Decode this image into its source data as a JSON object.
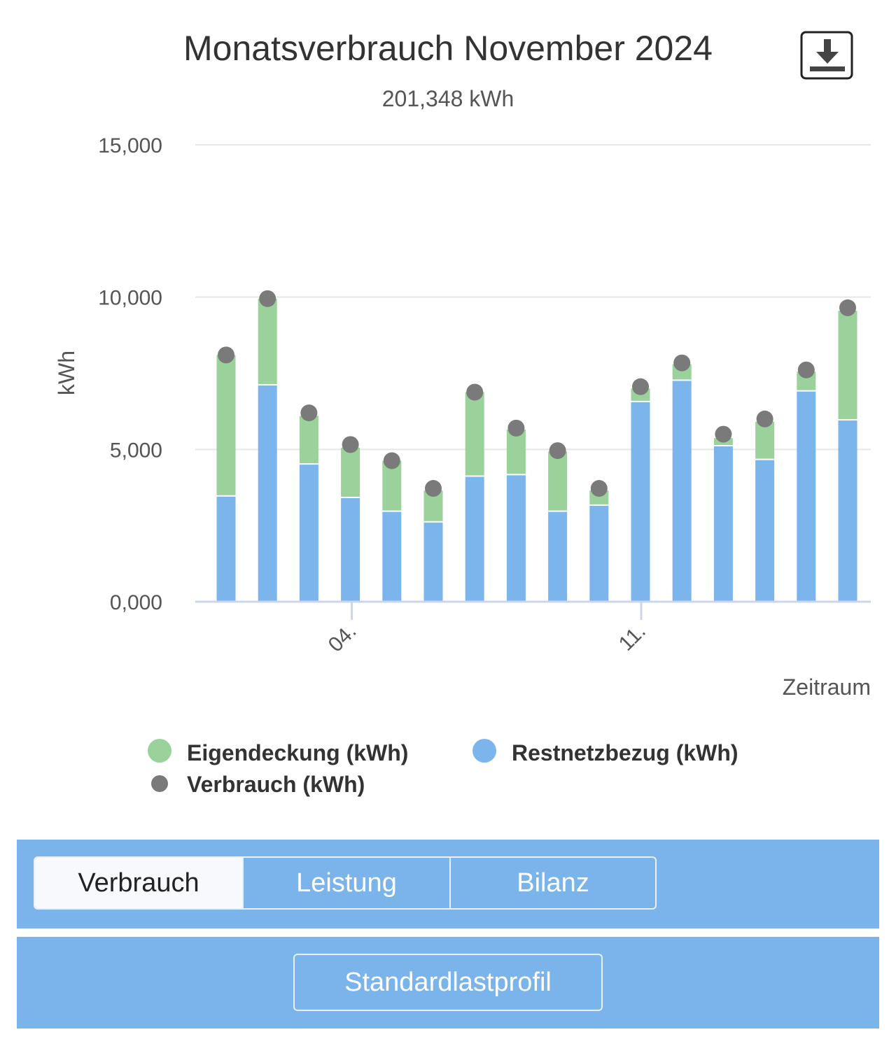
{
  "header": {
    "title": "Monatsverbrauch November 2024",
    "subtitle": "201,348 kWh",
    "download_icon": "download-icon"
  },
  "chart_data": {
    "type": "bar",
    "stacked": true,
    "title": "Monatsverbrauch November 2024",
    "subtitle": "201,348 kWh",
    "xlabel": "Zeitraum",
    "ylabel": "kWh",
    "ylim": [
      0,
      15000
    ],
    "yticks": [
      "0,000",
      "5,000",
      "10,000",
      "15,000"
    ],
    "ytick_values": [
      0,
      5000,
      10000,
      15000
    ],
    "xtick_labels": [
      {
        "label": "04.",
        "day": 4
      },
      {
        "label": "11.",
        "day": 11
      }
    ],
    "x_days": [
      1,
      2,
      3,
      4,
      5,
      6,
      7,
      8,
      9,
      10,
      11,
      12,
      13,
      14,
      15,
      16
    ],
    "series": [
      {
        "name": "Restnetzbezug (kWh)",
        "kind": "bar",
        "color": "#7cb5ec",
        "values": [
          3450,
          7100,
          4500,
          3400,
          2950,
          2600,
          4100,
          4150,
          2950,
          3150,
          6550,
          7250,
          5100,
          4650,
          6900,
          5950
        ]
      },
      {
        "name": "Eigendeckung (kWh)",
        "kind": "bar",
        "color": "#9bd19b",
        "values": [
          4650,
          2850,
          1600,
          1660,
          1680,
          1050,
          2780,
          1500,
          1980,
          500,
          450,
          550,
          270,
          1260,
          650,
          3600
        ]
      },
      {
        "name": "Verbrauch (kWh)",
        "kind": "dot",
        "color": "#7a7a7a",
        "values": [
          8100,
          9950,
          6200,
          5160,
          4630,
          3720,
          6880,
          5700,
          4960,
          3720,
          7060,
          7840,
          5500,
          6000,
          7610,
          9650
        ]
      }
    ],
    "legend": [
      {
        "label": "Eigendeckung (kWh)",
        "color": "#9bd19b"
      },
      {
        "label": "Restnetzbezug (kWh)",
        "color": "#7cb5ec"
      },
      {
        "label": "Verbrauch (kWh)",
        "color": "#7a7a7a"
      }
    ],
    "grid": true,
    "legend_position": "bottom"
  },
  "tabs": [
    {
      "label": "Verbrauch",
      "active": true
    },
    {
      "label": "Leistung",
      "active": false
    },
    {
      "label": "Bilanz",
      "active": false
    }
  ],
  "profile_button": {
    "label": "Standardlastprofil"
  }
}
